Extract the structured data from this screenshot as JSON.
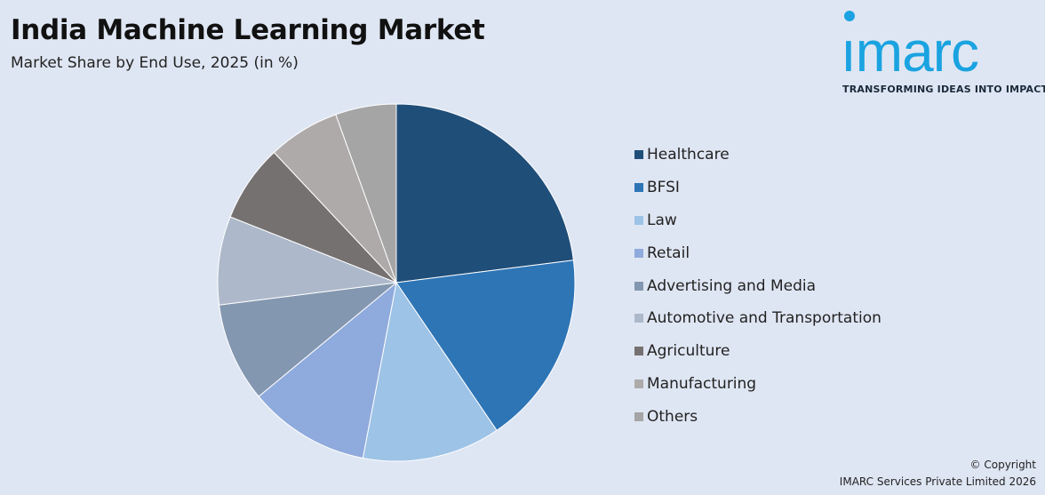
{
  "header": {
    "title": "India Machine Learning Market",
    "subtitle": "Market Share by End Use, 2025 (in %)"
  },
  "logo": {
    "word": "ımarc",
    "tagline": "TRANSFORMING IDEAS INTO IMPACT",
    "color": "#1aa3e0"
  },
  "footer": {
    "line1": "© Copyright",
    "line2": "IMARC Services Private Limited 2026"
  },
  "chart_data": {
    "type": "pie",
    "title": "India Machine Learning Market",
    "subtitle": "Market Share by End Use, 2025 (in %)",
    "legend_position": "right",
    "start_angle": "12 o'clock",
    "direction": "clockwise",
    "slices": [
      {
        "label": "Healthcare",
        "value": 23.0,
        "color": "#1f4e79"
      },
      {
        "label": "BFSI",
        "value": 17.5,
        "color": "#2e75b6"
      },
      {
        "label": "Law",
        "value": 12.5,
        "color": "#9dc3e6"
      },
      {
        "label": "Retail",
        "value": 11.0,
        "color": "#8faadc"
      },
      {
        "label": "Advertising and Media",
        "value": 9.0,
        "color": "#8497b0"
      },
      {
        "label": "Automotive and Transportation",
        "value": 8.0,
        "color": "#adb9ca"
      },
      {
        "label": "Agriculture",
        "value": 7.0,
        "color": "#767171"
      },
      {
        "label": "Manufacturing",
        "value": 6.5,
        "color": "#aeaaaa"
      },
      {
        "label": "Others",
        "value": 5.5,
        "color": "#a5a5a5"
      }
    ]
  }
}
